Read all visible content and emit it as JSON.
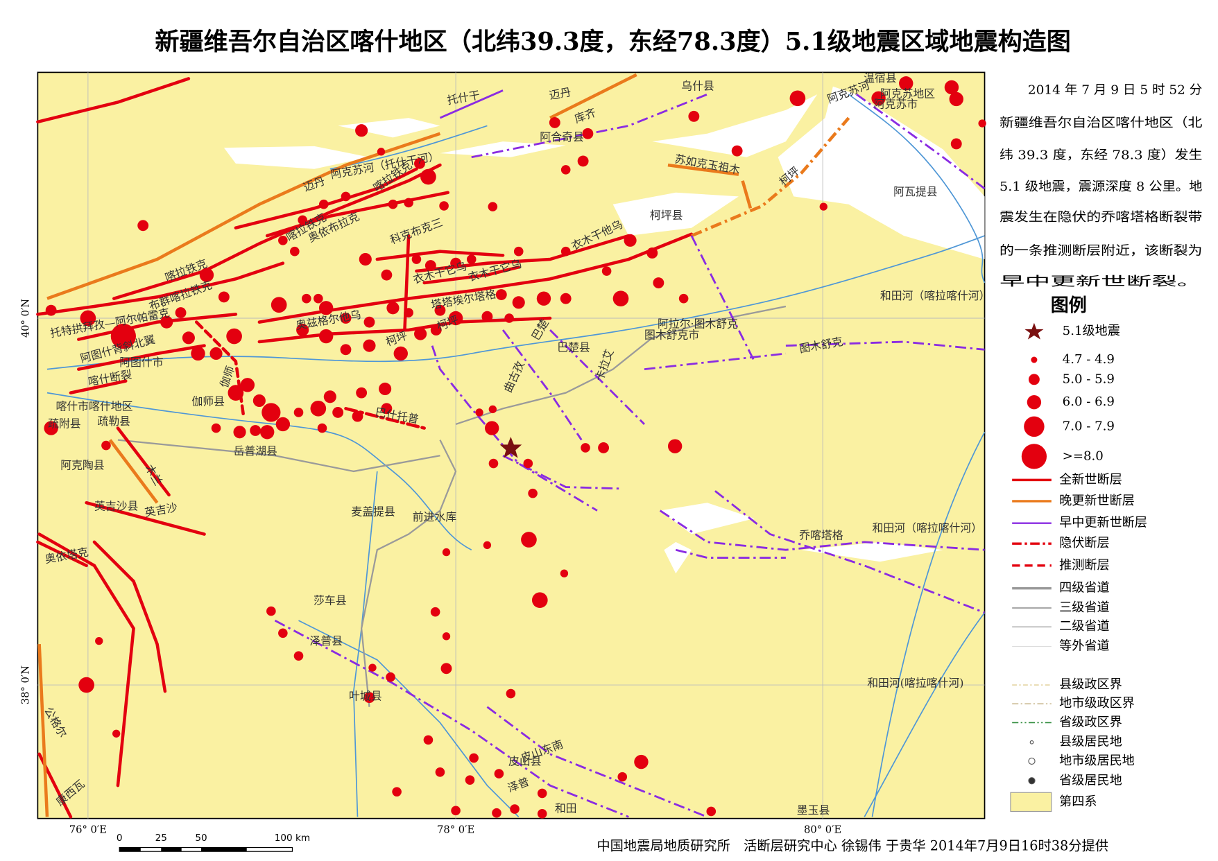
{
  "title": "新疆维吾尔自治区喀什地区（北纬39.3度，东经78.3度）5.1级地震区域地震构造图",
  "info": [
    "2014 年 7 月 9 日 5 时 52 分",
    "新疆维吾尔自治区喀什地区（北",
    "纬 39.3 度，东经 78.3 度）发生",
    "5.1 级地震，震源深度 8 公里。地",
    "震发生在隐伏的乔喀塔格断裂带",
    "的一条推测断层附近，该断裂为",
    "早中更新世断裂。"
  ],
  "legend": {
    "title": "图例",
    "items": [
      "5.1级地震",
      "4.7 - 4.9",
      "5.0 - 5.9",
      "6.0 - 6.9",
      "7.0 - 7.9",
      ">=8.0",
      "全新世断层",
      "晚更新世断层",
      "早中更新世断层",
      "隐伏断层",
      "推测断层",
      "四级省道",
      "三级省道",
      "二级省道",
      "等外省道",
      "县级政区界",
      "地市级政区界",
      "省级政区界",
      "县级居民地",
      "地市级居民地",
      "省级居民地",
      "第四系"
    ]
  },
  "lon_labels": [
    "76° 0′E",
    "78° 0′E",
    "80° 0′E"
  ],
  "lat_labels": [
    "40° 0′N",
    "38° 0′N"
  ],
  "scale_bar": [
    "0",
    "25",
    "50",
    "100 km"
  ],
  "places": [
    "迈丹",
    "喀拉铁克",
    "托什干",
    "迈丹",
    "库齐",
    "乌什县",
    "阿克苏河",
    "温宿县",
    "阿克苏地区",
    "阿克苏市",
    "阿合奇县",
    "苏如克玉祖木",
    "柯坪",
    "阿瓦提县",
    "柯坪县",
    "喀拉铁克",
    "奥依布拉克",
    "科克布克三",
    "衣木干他乌",
    "喀拉铁克",
    "布群喀拉铁克",
    "衣木干它乌",
    "衣木干它乌",
    "塔塔埃尔塔格",
    "和田河（喀拉喀什河）",
    "托特拱拜孜—阿尔帕雷克",
    "奥兹格尔他乌",
    "柯坪",
    "巴楚",
    "阿拉尔·图木舒克",
    "图木舒克市",
    "阿图什背斜北翼",
    "阿图什市",
    "柯坪",
    "巴楚县",
    "图木舒克",
    "喀什断裂",
    "伽师",
    "曲古孜",
    "卡拉艾",
    "喀什市喀什地区",
    "疏附县",
    "疏勒县",
    "伽师县",
    "巴什托普",
    "岳普湖县",
    "阿克陶县",
    "木兰",
    "英吉沙县",
    "英吉沙",
    "麦盖提县",
    "前进水库",
    "和田河（喀拉喀什河）",
    "乔喀塔格",
    "奥依塔克",
    "莎车县",
    "泽普县",
    "和田河(喀拉喀什河)",
    "叶城县",
    "公格尔",
    "皮山东南",
    "皮山县",
    "和田",
    "墨玉县",
    "康西瓦",
    "泽普",
    "阿克苏河（托什干河）"
  ],
  "credit": "中国地震局地质研究所　活断层研究中心 徐锡伟 于贵华 2014年7月9日16时38分提供"
}
